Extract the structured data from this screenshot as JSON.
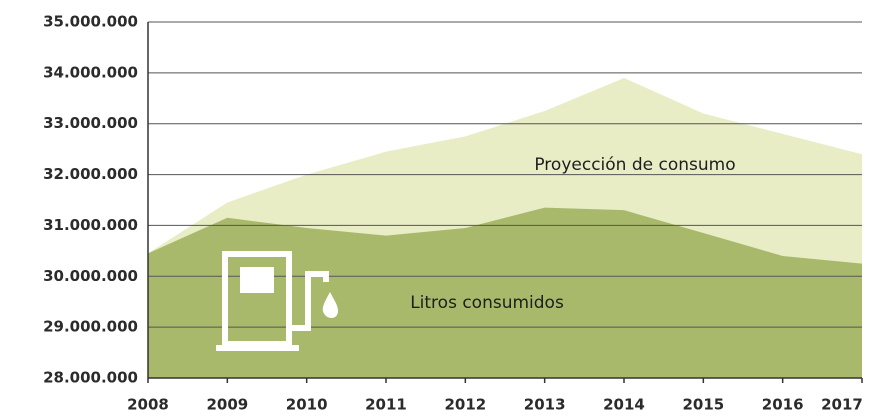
{
  "chart_data": {
    "type": "area",
    "categories": [
      "2008",
      "2009",
      "2010",
      "2011",
      "2012",
      "2013",
      "2014",
      "2015",
      "2016",
      "2017"
    ],
    "series": [
      {
        "name": "Proyección de consumo",
        "color": "#e8edc6",
        "values": [
          30450000,
          31450000,
          32000000,
          32450000,
          32750000,
          33250000,
          33900000,
          33200000,
          32800000,
          32400000
        ]
      },
      {
        "name": "Litros consumidos",
        "color": "#a8b96c",
        "values": [
          30450000,
          31150000,
          30950000,
          30800000,
          30950000,
          31350000,
          31300000,
          30850000,
          30400000,
          30250000
        ]
      }
    ],
    "ylim": [
      28000000,
      35000000
    ],
    "yticks": [
      {
        "value": 28000000,
        "label": "28.000.000"
      },
      {
        "value": 29000000,
        "label": "29.000.000"
      },
      {
        "value": 30000000,
        "label": "30.000.000"
      },
      {
        "value": 31000000,
        "label": "31.000.000"
      },
      {
        "value": 32000000,
        "label": "32.000.000"
      },
      {
        "value": 33000000,
        "label": "33.000.000"
      },
      {
        "value": 34000000,
        "label": "34.000.000"
      },
      {
        "value": 35000000,
        "label": "35.000.000"
      }
    ],
    "grid": true
  }
}
